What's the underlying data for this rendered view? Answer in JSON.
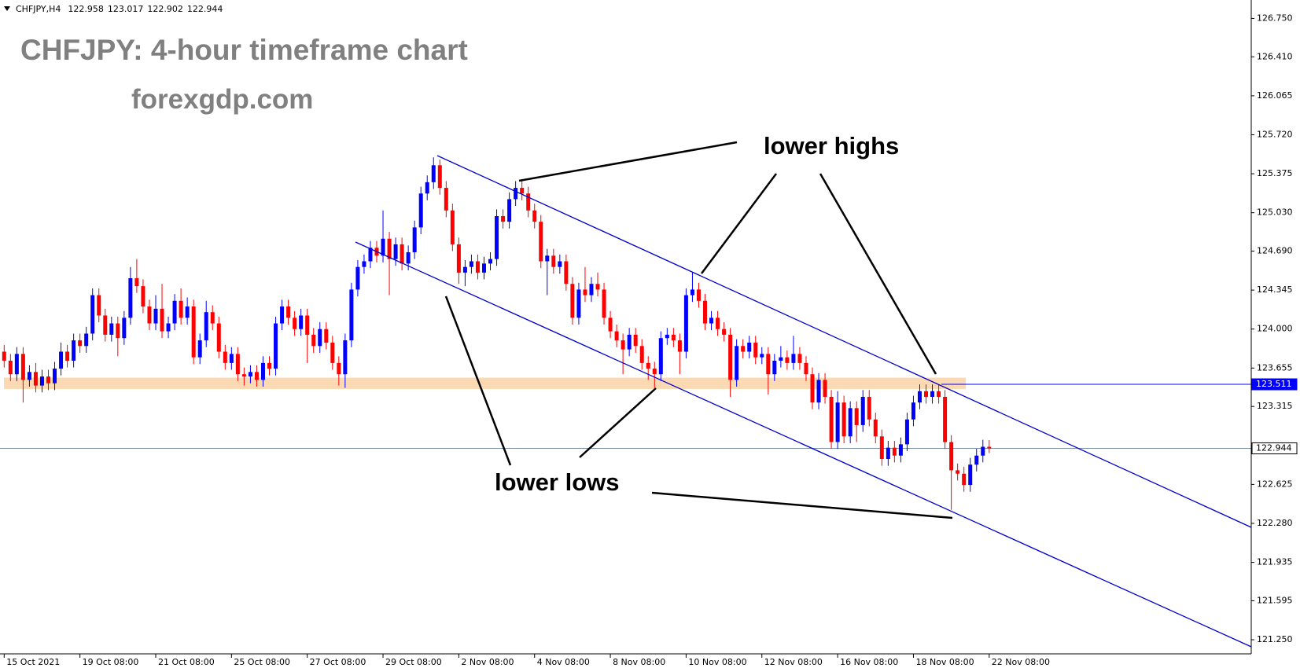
{
  "chart_data": {
    "type": "candlestick",
    "symbol": "CHFJPY,H4",
    "title": "CHFJPY: 4-hour timeframe chart",
    "subtitle": "forexgdp.com",
    "annotations": [
      "lower highs",
      "lower lows"
    ],
    "colors": {
      "up": "#0000ff",
      "down": "#ff0000"
    },
    "open": [
      123.8,
      123.72,
      123.6,
      123.78,
      123.55,
      123.62,
      123.5,
      123.58,
      123.52,
      123.65,
      123.8,
      123.72,
      123.9,
      123.85,
      123.96,
      124.3,
      124.12,
      123.95,
      124.05,
      123.92,
      124.1,
      124.45,
      124.38,
      124.2,
      124.05,
      124.18,
      123.98,
      124.05,
      124.25,
      124.1,
      124.2,
      123.75,
      123.9,
      124.15,
      124.05,
      123.8,
      123.7,
      123.78,
      123.6,
      123.58,
      123.62,
      123.55,
      123.7,
      123.65,
      124.05,
      124.2,
      124.1,
      124.0,
      124.12,
      123.95,
      123.85,
      124.0,
      123.88,
      123.7,
      123.6,
      123.9,
      124.35,
      124.55,
      124.6,
      124.72,
      124.65,
      124.8,
      124.62,
      124.75,
      124.58,
      124.68,
      124.9,
      125.2,
      125.3,
      125.45,
      125.25,
      125.05,
      124.75,
      124.5,
      124.55,
      124.6,
      124.5,
      124.58,
      124.62,
      125.0,
      124.95,
      125.15,
      125.25,
      125.2,
      125.05,
      124.95,
      124.6,
      124.65,
      124.55,
      124.6,
      124.4,
      124.1,
      124.35,
      124.3,
      124.4,
      124.35,
      124.1,
      123.98,
      123.9,
      123.82,
      123.95,
      123.85,
      123.7,
      123.65,
      123.6,
      123.92,
      123.95,
      123.9,
      123.8,
      124.3,
      124.35,
      124.25,
      124.05,
      124.1,
      124.0,
      123.95,
      123.55,
      123.85,
      123.8,
      123.88,
      123.75,
      123.78,
      123.6,
      123.72,
      123.75,
      123.7,
      123.78,
      123.7,
      123.6,
      123.35,
      123.55,
      123.4,
      123.0,
      123.35,
      123.05,
      123.3,
      123.15,
      123.4,
      123.2,
      123.05,
      122.85,
      122.95,
      122.88,
      122.98,
      123.2,
      123.35,
      123.45,
      123.4,
      123.45,
      123.4,
      123.0,
      122.75,
      122.72,
      122.62,
      122.8,
      122.88,
      122.958
    ],
    "high": [
      123.86,
      123.78,
      123.84,
      123.84,
      123.68,
      123.7,
      123.64,
      123.64,
      123.71,
      123.88,
      123.86,
      123.96,
      123.96,
      124.02,
      124.36,
      124.36,
      124.18,
      124.11,
      124.11,
      124.16,
      124.55,
      124.62,
      124.44,
      124.26,
      124.3,
      124.4,
      124.11,
      124.31,
      124.36,
      124.28,
      124.26,
      123.96,
      124.25,
      124.21,
      124.11,
      123.86,
      123.84,
      123.84,
      123.66,
      123.68,
      123.68,
      123.76,
      123.76,
      124.11,
      124.26,
      124.26,
      124.16,
      124.18,
      124.18,
      124.01,
      124.06,
      124.06,
      123.94,
      123.76,
      123.96,
      124.41,
      124.61,
      124.66,
      124.78,
      124.78,
      125.05,
      124.86,
      124.81,
      124.81,
      124.74,
      124.96,
      125.26,
      125.36,
      125.52,
      125.5,
      125.31,
      125.11,
      124.81,
      124.61,
      124.66,
      124.66,
      124.64,
      124.68,
      125.06,
      125.06,
      125.21,
      125.31,
      125.31,
      125.26,
      125.11,
      125.01,
      124.71,
      124.71,
      124.66,
      124.66,
      124.46,
      124.41,
      124.55,
      124.46,
      124.5,
      124.41,
      124.16,
      124.04,
      123.96,
      124.01,
      124.01,
      123.91,
      123.76,
      123.71,
      123.98,
      124.01,
      124.01,
      123.96,
      124.36,
      124.5,
      124.41,
      124.31,
      124.16,
      124.16,
      124.06,
      124.01,
      123.91,
      123.91,
      123.94,
      123.94,
      123.84,
      123.84,
      123.78,
      123.85,
      123.81,
      123.94,
      123.84,
      123.76,
      123.66,
      123.61,
      123.61,
      123.46,
      123.45,
      123.41,
      123.36,
      123.36,
      123.46,
      123.46,
      123.26,
      123.11,
      123.01,
      123.01,
      123.04,
      123.26,
      123.41,
      123.51,
      123.51,
      123.51,
      123.51,
      123.46,
      123.06,
      122.81,
      122.78,
      122.86,
      122.94,
      123.02,
      123.017
    ],
    "low": [
      123.66,
      123.54,
      123.54,
      123.35,
      123.49,
      123.44,
      123.44,
      123.46,
      123.46,
      123.59,
      123.66,
      123.66,
      123.79,
      123.79,
      123.9,
      124.06,
      123.89,
      123.89,
      123.76,
      123.86,
      124.04,
      124.32,
      124.14,
      123.99,
      123.99,
      123.92,
      123.92,
      123.99,
      124.04,
      124.04,
      123.69,
      123.69,
      123.84,
      123.99,
      123.74,
      123.64,
      123.64,
      123.54,
      123.5,
      123.52,
      123.49,
      123.49,
      123.59,
      123.59,
      123.99,
      124.04,
      123.94,
      123.94,
      123.7,
      123.79,
      123.79,
      123.82,
      123.64,
      123.5,
      123.48,
      123.84,
      124.29,
      124.49,
      124.54,
      124.59,
      124.59,
      124.3,
      124.56,
      124.52,
      124.52,
      124.62,
      124.84,
      125.14,
      125.24,
      125.19,
      124.99,
      124.69,
      124.4,
      124.38,
      124.49,
      124.44,
      124.44,
      124.52,
      124.56,
      124.89,
      124.89,
      125.09,
      125.14,
      124.99,
      124.89,
      124.54,
      124.3,
      124.49,
      124.49,
      124.34,
      124.04,
      124.04,
      124.24,
      124.24,
      124.29,
      124.04,
      123.92,
      123.84,
      123.6,
      123.76,
      123.79,
      123.64,
      123.55,
      123.48,
      123.54,
      123.86,
      123.84,
      123.6,
      123.74,
      124.24,
      124.19,
      123.99,
      123.99,
      123.94,
      123.89,
      123.4,
      123.49,
      123.74,
      123.74,
      123.69,
      123.69,
      123.42,
      123.54,
      123.66,
      123.64,
      123.64,
      123.64,
      123.54,
      123.29,
      123.29,
      123.34,
      122.94,
      122.94,
      122.99,
      122.99,
      123.0,
      123.09,
      123.14,
      122.99,
      122.79,
      122.79,
      122.82,
      122.82,
      122.92,
      123.14,
      123.29,
      123.34,
      123.34,
      123.34,
      122.94,
      122.4,
      122.66,
      122.56,
      122.56,
      122.74,
      122.82,
      122.902
    ],
    "close": [
      123.72,
      123.6,
      123.78,
      123.55,
      123.62,
      123.5,
      123.58,
      123.52,
      123.65,
      123.8,
      123.72,
      123.9,
      123.85,
      123.96,
      124.3,
      124.12,
      123.95,
      124.05,
      123.92,
      124.1,
      124.45,
      124.38,
      124.2,
      124.05,
      124.18,
      123.98,
      124.05,
      124.25,
      124.1,
      124.2,
      123.75,
      123.9,
      124.15,
      124.05,
      123.8,
      123.7,
      123.78,
      123.6,
      123.58,
      123.62,
      123.55,
      123.7,
      123.65,
      124.05,
      124.2,
      124.1,
      124.0,
      124.12,
      123.95,
      123.85,
      124.0,
      123.88,
      123.7,
      123.6,
      123.9,
      124.35,
      124.55,
      124.6,
      124.72,
      124.65,
      124.8,
      124.62,
      124.75,
      124.58,
      124.68,
      124.9,
      125.2,
      125.3,
      125.45,
      125.25,
      125.05,
      124.75,
      124.5,
      124.55,
      124.6,
      124.5,
      124.58,
      124.62,
      125.0,
      124.95,
      125.15,
      125.25,
      125.2,
      125.05,
      124.95,
      124.6,
      124.65,
      124.55,
      124.6,
      124.4,
      124.1,
      124.35,
      124.3,
      124.4,
      124.35,
      124.1,
      123.98,
      123.9,
      123.82,
      123.95,
      123.85,
      123.7,
      123.65,
      123.6,
      123.92,
      123.95,
      123.9,
      123.8,
      124.3,
      124.35,
      124.25,
      124.05,
      124.1,
      124.0,
      123.95,
      123.55,
      123.85,
      123.8,
      123.88,
      123.75,
      123.78,
      123.6,
      123.72,
      123.75,
      123.7,
      123.78,
      123.7,
      123.6,
      123.35,
      123.55,
      123.4,
      123.0,
      123.35,
      123.05,
      123.3,
      123.15,
      123.4,
      123.2,
      123.05,
      122.85,
      122.95,
      122.88,
      122.98,
      123.2,
      123.35,
      123.45,
      123.4,
      123.45,
      123.4,
      123.0,
      122.75,
      122.72,
      122.62,
      122.8,
      122.88,
      122.958,
      122.944
    ],
    "xlim": [
      -0.66,
      197.5
    ],
    "xticks": [
      {
        "value": 0,
        "label": "15 Oct 2021"
      },
      {
        "value": 12,
        "label": "19 Oct 08:00"
      },
      {
        "value": 24,
        "label": "21 Oct 08:00"
      },
      {
        "value": 36,
        "label": "25 Oct 08:00"
      },
      {
        "value": 48,
        "label": "27 Oct 08:00"
      },
      {
        "value": 60,
        "label": "29 Oct 08:00"
      },
      {
        "value": 72,
        "label": "2 Nov 08:00"
      },
      {
        "value": 84,
        "label": "4 Nov 08:00"
      },
      {
        "value": 96,
        "label": "8 Nov 08:00"
      },
      {
        "value": 108,
        "label": "10 Nov 08:00"
      },
      {
        "value": 120,
        "label": "12 Nov 08:00"
      },
      {
        "value": 132,
        "label": "16 Nov 08:00"
      },
      {
        "value": 144,
        "label": "18 Nov 08:00"
      },
      {
        "value": 156,
        "label": "22 Nov 08:00"
      }
    ],
    "ylim": [
      121.125,
      126.913
    ],
    "yticks": [
      {
        "value": 126.75,
        "label": "126.750"
      },
      {
        "value": 126.41,
        "label": "126.410"
      },
      {
        "value": 126.065,
        "label": "126.065"
      },
      {
        "value": 125.72,
        "label": "125.720"
      },
      {
        "value": 125.375,
        "label": "125.375"
      },
      {
        "value": 125.03,
        "label": "125.030"
      },
      {
        "value": 124.69,
        "label": "124.690"
      },
      {
        "value": 124.345,
        "label": "124.345"
      },
      {
        "value": 124,
        "label": "124.000"
      },
      {
        "value": 123.655,
        "label": "123.655"
      },
      {
        "value": 123.315,
        "label": "123.315"
      },
      {
        "value": 122.625,
        "label": "122.625"
      },
      {
        "value": 122.28,
        "label": "122.280"
      },
      {
        "value": 121.935,
        "label": "121.935"
      },
      {
        "value": 121.595,
        "label": "121.595"
      },
      {
        "value": 121.25,
        "label": "121.250"
      }
    ],
    "grid": false,
    "zone": {
      "from": 123.47,
      "to": 123.57,
      "color": "#fbd9b3"
    },
    "ref_line": {
      "value": 123.511,
      "color": "#0000ff"
    },
    "price_line": {
      "value": 122.944,
      "color": "#7a90a8"
    }
  }
}
